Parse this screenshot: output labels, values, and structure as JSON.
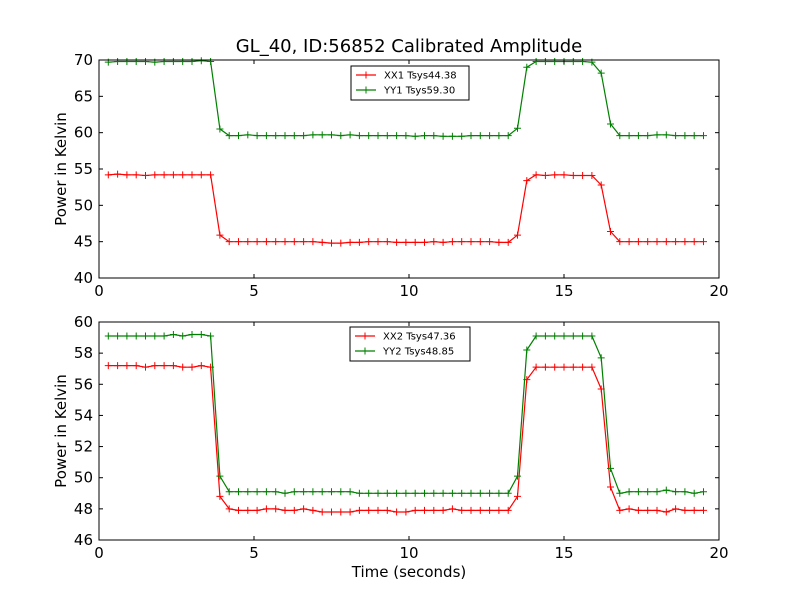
{
  "chart_data": [
    {
      "type": "line",
      "title": "GL_40, ID:56852 Calibrated Amplitude",
      "xlabel": "",
      "ylabel": "Power in Kelvin",
      "xlim": [
        0,
        20
      ],
      "ylim": [
        40,
        70
      ],
      "xticks": [
        0,
        5,
        10,
        15,
        20
      ],
      "yticks": [
        40,
        45,
        50,
        55,
        60,
        65,
        70
      ],
      "grid": false,
      "legend": "top-center",
      "x": [
        0.3,
        0.6,
        0.9,
        1.2,
        1.5,
        1.8,
        2.1,
        2.4,
        2.7,
        3.0,
        3.3,
        3.6,
        3.9,
        4.2,
        4.5,
        4.8,
        5.1,
        5.4,
        5.7,
        6.0,
        6.3,
        6.6,
        6.9,
        7.2,
        7.5,
        7.8,
        8.1,
        8.4,
        8.7,
        9.0,
        9.3,
        9.6,
        9.9,
        10.2,
        10.5,
        10.8,
        11.1,
        11.4,
        11.7,
        12.0,
        12.3,
        12.6,
        12.9,
        13.2,
        13.5,
        13.8,
        14.1,
        14.4,
        14.7,
        15.0,
        15.3,
        15.6,
        15.9,
        16.2,
        16.5,
        16.8,
        17.1,
        17.4,
        17.7,
        18.0,
        18.3,
        18.6,
        18.9,
        19.2,
        19.5
      ],
      "series": [
        {
          "name": "XX1 Tsys44.38",
          "color": "#ff0000",
          "values": [
            54.2,
            54.3,
            54.2,
            54.2,
            54.1,
            54.2,
            54.2,
            54.2,
            54.2,
            54.2,
            54.2,
            54.2,
            45.9,
            45.0,
            45.0,
            45.0,
            45.0,
            45.0,
            45.0,
            45.0,
            45.0,
            45.0,
            45.0,
            44.9,
            44.8,
            44.8,
            44.9,
            44.9,
            45.0,
            45.0,
            45.0,
            44.9,
            44.9,
            44.9,
            44.9,
            45.0,
            44.9,
            45.0,
            45.0,
            45.0,
            45.0,
            45.0,
            44.9,
            44.9,
            45.9,
            53.4,
            54.2,
            54.1,
            54.2,
            54.2,
            54.1,
            54.1,
            54.1,
            52.8,
            46.4,
            45.0,
            45.0,
            45.0,
            45.0,
            45.0,
            45.0,
            45.0,
            45.0,
            45.0,
            45.0
          ]
        },
        {
          "name": "YY1 Tsys59.30",
          "color": "#008000",
          "values": [
            69.7,
            69.8,
            69.8,
            69.8,
            69.8,
            69.7,
            69.8,
            69.8,
            69.8,
            69.8,
            69.9,
            69.8,
            60.5,
            59.6,
            59.6,
            59.7,
            59.6,
            59.6,
            59.6,
            59.6,
            59.6,
            59.6,
            59.7,
            59.7,
            59.7,
            59.6,
            59.7,
            59.6,
            59.6,
            59.6,
            59.6,
            59.6,
            59.6,
            59.5,
            59.6,
            59.6,
            59.5,
            59.5,
            59.5,
            59.6,
            59.6,
            59.6,
            59.6,
            59.6,
            60.6,
            69.0,
            69.8,
            69.8,
            69.8,
            69.8,
            69.8,
            69.8,
            69.7,
            68.2,
            61.2,
            59.6,
            59.6,
            59.6,
            59.6,
            59.7,
            59.7,
            59.6,
            59.6,
            59.6,
            59.6
          ]
        }
      ]
    },
    {
      "type": "line",
      "title": "",
      "xlabel": "Time (seconds)",
      "ylabel": "Power in Kelvin",
      "xlim": [
        0,
        20
      ],
      "ylim": [
        46,
        60
      ],
      "xticks": [
        0,
        5,
        10,
        15,
        20
      ],
      "yticks": [
        46,
        48,
        50,
        52,
        54,
        56,
        58,
        60
      ],
      "grid": false,
      "legend": "top-center",
      "x": [
        0.3,
        0.6,
        0.9,
        1.2,
        1.5,
        1.8,
        2.1,
        2.4,
        2.7,
        3.0,
        3.3,
        3.6,
        3.9,
        4.2,
        4.5,
        4.8,
        5.1,
        5.4,
        5.7,
        6.0,
        6.3,
        6.6,
        6.9,
        7.2,
        7.5,
        7.8,
        8.1,
        8.4,
        8.7,
        9.0,
        9.3,
        9.6,
        9.9,
        10.2,
        10.5,
        10.8,
        11.1,
        11.4,
        11.7,
        12.0,
        12.3,
        12.6,
        12.9,
        13.2,
        13.5,
        13.8,
        14.1,
        14.4,
        14.7,
        15.0,
        15.3,
        15.6,
        15.9,
        16.2,
        16.5,
        16.8,
        17.1,
        17.4,
        17.7,
        18.0,
        18.3,
        18.6,
        18.9,
        19.2,
        19.5
      ],
      "series": [
        {
          "name": "XX2 Tsys47.36",
          "color": "#ff0000",
          "values": [
            57.2,
            57.2,
            57.2,
            57.2,
            57.1,
            57.2,
            57.2,
            57.2,
            57.1,
            57.1,
            57.2,
            57.1,
            48.8,
            48.0,
            47.9,
            47.9,
            47.9,
            48.0,
            48.0,
            47.9,
            47.9,
            48.0,
            47.9,
            47.8,
            47.8,
            47.8,
            47.8,
            47.9,
            47.9,
            47.9,
            47.9,
            47.8,
            47.8,
            47.9,
            47.9,
            47.9,
            47.9,
            48.0,
            47.9,
            47.9,
            47.9,
            47.9,
            47.9,
            47.9,
            48.8,
            56.3,
            57.1,
            57.1,
            57.1,
            57.1,
            57.1,
            57.1,
            57.1,
            55.7,
            49.4,
            47.9,
            48.0,
            47.9,
            47.9,
            47.9,
            47.8,
            48.0,
            47.9,
            47.9,
            47.9
          ]
        },
        {
          "name": "YY2 Tsys48.85",
          "color": "#008000",
          "values": [
            59.1,
            59.1,
            59.1,
            59.1,
            59.1,
            59.1,
            59.1,
            59.2,
            59.1,
            59.2,
            59.2,
            59.1,
            50.1,
            49.1,
            49.1,
            49.1,
            49.1,
            49.1,
            49.1,
            49.0,
            49.1,
            49.1,
            49.1,
            49.1,
            49.1,
            49.1,
            49.1,
            49.0,
            49.0,
            49.0,
            49.0,
            49.0,
            49.0,
            49.0,
            49.0,
            49.0,
            49.0,
            49.0,
            49.0,
            49.0,
            49.0,
            49.0,
            49.0,
            49.0,
            50.1,
            58.2,
            59.1,
            59.1,
            59.1,
            59.1,
            59.1,
            59.1,
            59.1,
            57.7,
            50.6,
            49.0,
            49.1,
            49.1,
            49.1,
            49.1,
            49.2,
            49.1,
            49.1,
            49.0,
            49.1
          ]
        }
      ]
    }
  ]
}
